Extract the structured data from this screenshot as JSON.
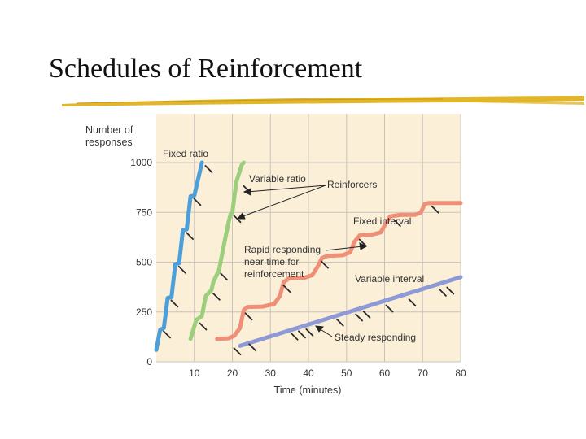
{
  "slide": {
    "title": "Schedules of Reinforcement"
  },
  "colors": {
    "plot_bg": "#fbefd8",
    "grid": "#c8c4bc",
    "rule": "#e2b62a",
    "fixed_ratio": "#4c9fd8",
    "variable_ratio": "#9ccf7c",
    "fixed_interval": "#ef8f77",
    "variable_interval": "#8e9ad6",
    "marker": "#2a2a2a"
  },
  "chart_data": {
    "type": "line",
    "title": "",
    "xlabel": "Time (minutes)",
    "ylabel": "Number of responses",
    "xlim": [
      0,
      80
    ],
    "ylim": [
      0,
      1000
    ],
    "x_ticks": [
      "10",
      "20",
      "30",
      "40",
      "50",
      "60",
      "70",
      "80"
    ],
    "y_ticks": [
      "0",
      "250",
      "500",
      "750",
      "1000"
    ],
    "grid": true,
    "series": [
      {
        "name": "Fixed ratio",
        "key": "fixed_ratio",
        "points": [
          [
            0,
            60
          ],
          [
            1,
            160
          ],
          [
            2,
            170
          ],
          [
            3,
            320
          ],
          [
            4,
            325
          ],
          [
            5,
            490
          ],
          [
            6,
            495
          ],
          [
            7,
            660
          ],
          [
            8,
            665
          ],
          [
            9,
            830
          ],
          [
            10,
            835
          ],
          [
            12,
            1000
          ]
        ],
        "reinforcers": [
          [
            1.5,
            170
          ],
          [
            3.5,
            325
          ],
          [
            5.5,
            495
          ],
          [
            7.5,
            665
          ],
          [
            9.5,
            835
          ],
          [
            12.5,
            1000
          ]
        ]
      },
      {
        "name": "Variable ratio",
        "key": "variable_ratio",
        "points": [
          [
            9,
            115
          ],
          [
            10.5,
            210
          ],
          [
            12,
            230
          ],
          [
            13,
            330
          ],
          [
            14.5,
            360
          ],
          [
            15,
            400
          ],
          [
            16.5,
            460
          ],
          [
            17.5,
            560
          ],
          [
            19,
            700
          ],
          [
            19.5,
            740
          ],
          [
            20,
            750
          ],
          [
            21,
            900
          ],
          [
            22.5,
            990
          ],
          [
            23,
            1000
          ]
        ],
        "reinforcers": [
          [
            11,
            210
          ],
          [
            14.5,
            360
          ],
          [
            16.5,
            460
          ],
          [
            20,
            750
          ],
          [
            22.5,
            900
          ]
        ]
      },
      {
        "name": "Fixed interval",
        "key": "fixed_interval",
        "points": [
          [
            16,
            115
          ],
          [
            19,
            118
          ],
          [
            20.5,
            130
          ],
          [
            22,
            170
          ],
          [
            23,
            260
          ],
          [
            24,
            275
          ],
          [
            28,
            277
          ],
          [
            31,
            290
          ],
          [
            32.5,
            330
          ],
          [
            33.5,
            400
          ],
          [
            35,
            420
          ],
          [
            39,
            422
          ],
          [
            41,
            435
          ],
          [
            42.5,
            480
          ],
          [
            43.5,
            520
          ],
          [
            45,
            532
          ],
          [
            49,
            535
          ],
          [
            51,
            550
          ],
          [
            52,
            600
          ],
          [
            53.5,
            635
          ],
          [
            57,
            640
          ],
          [
            59,
            650
          ],
          [
            60.5,
            700
          ],
          [
            61.5,
            730
          ],
          [
            64,
            737
          ],
          [
            68,
            738
          ],
          [
            69.5,
            748
          ],
          [
            70.5,
            790
          ],
          [
            71.5,
            797
          ],
          [
            80,
            797
          ]
        ],
        "reinforcers": [
          [
            23,
            260
          ],
          [
            33,
            400
          ],
          [
            43,
            520
          ],
          [
            53,
            630
          ],
          [
            62,
            730
          ],
          [
            72,
            797
          ]
        ]
      },
      {
        "name": "Variable interval",
        "key": "variable_interval",
        "points": [
          [
            22,
            80
          ],
          [
            80,
            425
          ]
        ],
        "reinforcers": [
          [
            20,
            85
          ],
          [
            24,
            105
          ],
          [
            35,
            160
          ],
          [
            37,
            170
          ],
          [
            39,
            180
          ],
          [
            47,
            230
          ],
          [
            52,
            255
          ],
          [
            54,
            270
          ],
          [
            60,
            300
          ],
          [
            66,
            330
          ],
          [
            74,
            380
          ],
          [
            76,
            390
          ]
        ]
      }
    ],
    "annotations": [
      {
        "id": "fixed-ratio",
        "text": [
          "Fixed ratio"
        ]
      },
      {
        "id": "variable-ratio",
        "text": [
          "Variable ratio"
        ]
      },
      {
        "id": "reinforcers",
        "text": [
          "Reinforcers"
        ]
      },
      {
        "id": "fixed-interval",
        "text": [
          "Fixed interval"
        ]
      },
      {
        "id": "rapid-responding",
        "text": [
          "Rapid responding",
          "near time for",
          "reinforcement"
        ]
      },
      {
        "id": "variable-interval",
        "text": [
          "Variable interval"
        ]
      },
      {
        "id": "steady-responding",
        "text": [
          "Steady responding"
        ]
      }
    ]
  }
}
